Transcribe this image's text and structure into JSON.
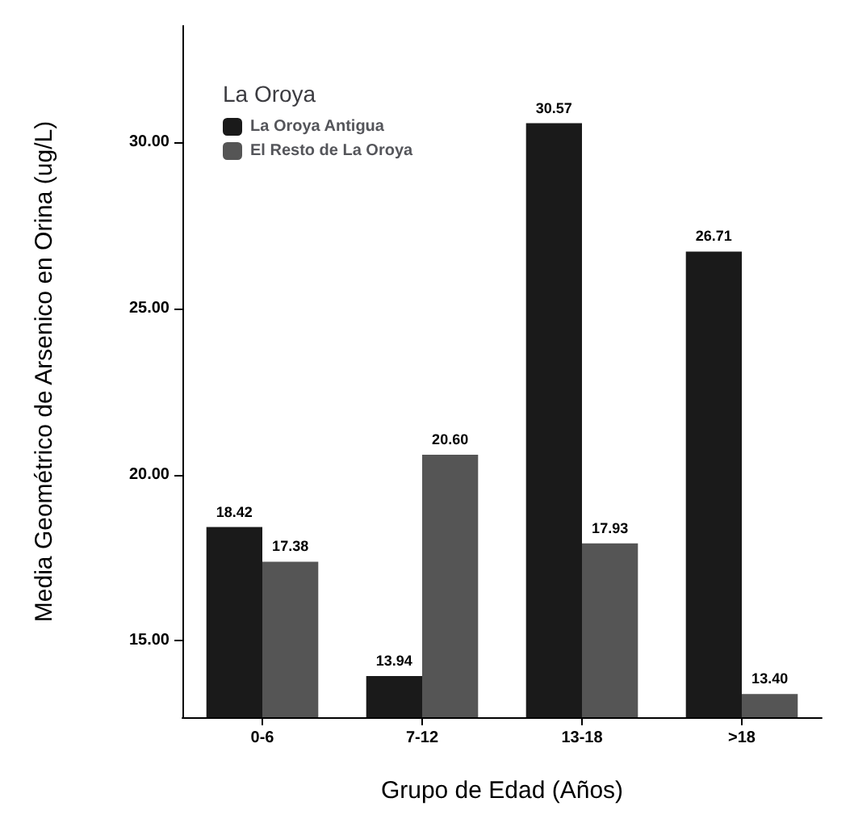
{
  "chart_data": {
    "type": "bar",
    "xlabel": "Grupo de Edad (Años)",
    "ylabel": "Media Geométrico de Arsenico en Orina (ug/L)",
    "legend_title": "La Oroya",
    "categories": [
      "0-6",
      "7-12",
      "13-18",
      ">18"
    ],
    "series": [
      {
        "name": "La Oroya Antigua",
        "color": "#1a1a1a",
        "values": [
          18.42,
          13.94,
          30.57,
          26.71
        ],
        "value_labels": [
          "18.42",
          "13.94",
          "30.57",
          "26.71"
        ]
      },
      {
        "name": "El Resto de La Oroya",
        "color": "#555555",
        "values": [
          17.38,
          20.6,
          17.93,
          13.4
        ],
        "value_labels": [
          "17.38",
          "20.60",
          "17.93",
          "13.40"
        ]
      }
    ],
    "ylim": [
      12.7,
      33.5
    ],
    "yticks": [
      {
        "value": 15,
        "label": "15.00"
      },
      {
        "value": 20,
        "label": "20.00"
      },
      {
        "value": 25,
        "label": "25.00"
      },
      {
        "value": 30,
        "label": "30.00"
      }
    ],
    "grid": false,
    "legend": "top left"
  }
}
